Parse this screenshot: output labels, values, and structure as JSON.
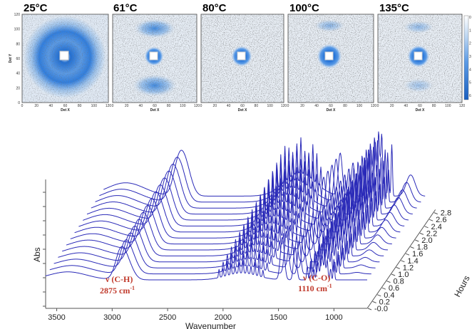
{
  "saxs_panels": {
    "panels": [
      {
        "temperature": "25°C"
      },
      {
        "temperature": "61°C"
      },
      {
        "temperature": "80°C"
      },
      {
        "temperature": "100°C"
      },
      {
        "temperature": "135°C"
      }
    ],
    "xlabel": "Det X",
    "ylabel": "Det Y",
    "x_ticks": [
      "0",
      "20",
      "40",
      "60",
      "80",
      "100",
      "120"
    ],
    "y_ticks": [
      "0",
      "20",
      "40",
      "60",
      "80",
      "100",
      "120"
    ],
    "colorbar_ticks": [
      "0",
      "1",
      "2",
      "3",
      "4",
      "5",
      "6"
    ],
    "colors": {
      "high": "#1f6fd6",
      "mid": "#7fb2ea",
      "background": "#dfe9f5",
      "speckle": "#2b2b2b"
    }
  },
  "chart_data": {
    "type": "line",
    "subtype": "3d-waterfall",
    "xlabel": "Wavenumber",
    "ylabel": "Abs",
    "zlabel": "Hours",
    "x_ticks": [
      3500,
      3000,
      2500,
      2000,
      1500,
      1000
    ],
    "xlim": [
      3600,
      700
    ],
    "z_ticks": [
      "-0.0",
      "0.2",
      "0.4",
      "0.6",
      "0.8",
      "1.0",
      "1.2",
      "1.4",
      "1.6",
      "1.8",
      "2.0",
      "2.2",
      "2.4",
      "2.6",
      "2.8"
    ],
    "series_count": 15,
    "line_color": "#2a2ab8",
    "annotations": [
      {
        "label": "ν (C-H)",
        "value": "2875 cm",
        "sup": "-1",
        "wavenumber": 2875
      },
      {
        "label": "ν (C-O)",
        "value": "1110 cm",
        "sup": "-1",
        "wavenumber": 1110
      }
    ],
    "annotation_color": "#c0392b"
  }
}
